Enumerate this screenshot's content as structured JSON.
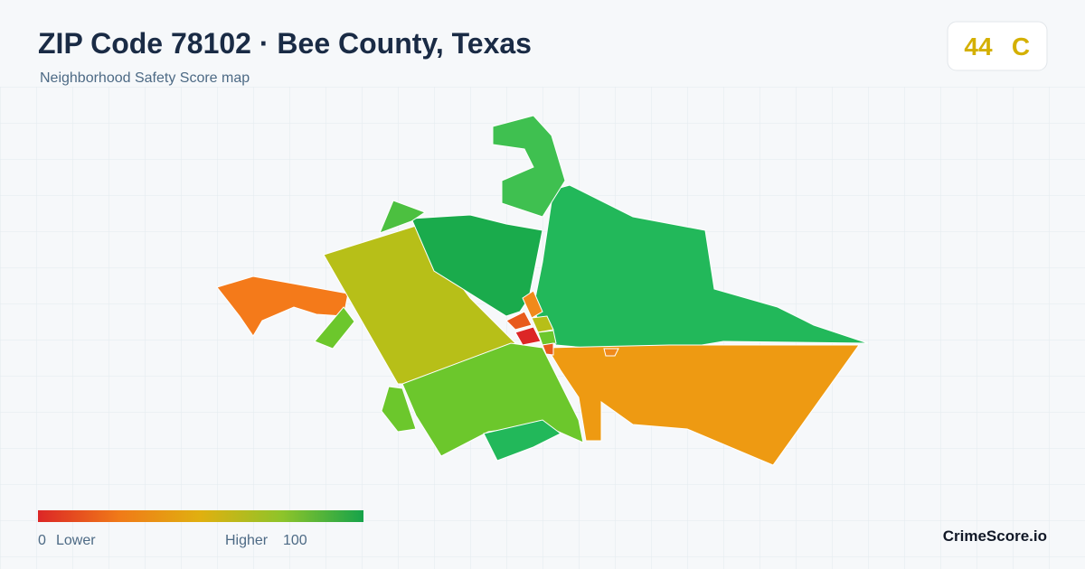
{
  "header": {
    "title": "ZIP Code 78102 · Bee County, Texas",
    "subtitle": "Neighborhood Safety Score map"
  },
  "score": {
    "value": "44",
    "grade": "C"
  },
  "legend": {
    "min": "0",
    "low_label": "Lower",
    "high_label": "Higher",
    "max": "100"
  },
  "brand": "CrimeScore.io"
}
